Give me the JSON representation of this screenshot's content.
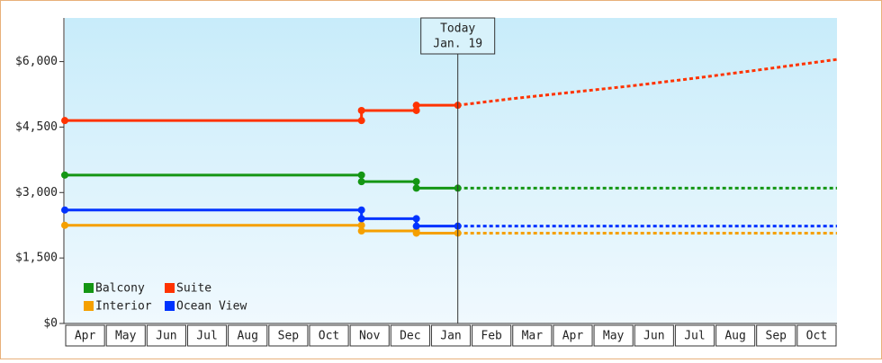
{
  "chart_data": {
    "type": "line",
    "categories": [
      "Apr",
      "May",
      "Jun",
      "Jul",
      "Aug",
      "Sep",
      "Oct",
      "Nov",
      "Dec",
      "Jan",
      "Feb",
      "Mar",
      "Apr",
      "May",
      "Jun",
      "Jul",
      "Aug",
      "Sep",
      "Oct"
    ],
    "xlim": [
      0,
      19
    ],
    "ylim": [
      0,
      7000
    ],
    "yticks": [
      {
        "value": 0,
        "label": "$0"
      },
      {
        "value": 1500,
        "label": "$1,500"
      },
      {
        "value": 3000,
        "label": "$3,000"
      },
      {
        "value": 4500,
        "label": "$4,500"
      },
      {
        "value": 6000,
        "label": "$6,000"
      }
    ],
    "annotation": {
      "x": 9.67,
      "lines": [
        "Today",
        "Jan. 19"
      ]
    },
    "series": [
      {
        "name": "Balcony",
        "color": "#149614",
        "x": [
          0,
          7.3,
          7.3,
          8.65,
          8.65,
          9.67
        ],
        "values": [
          3400,
          3400,
          3250,
          3250,
          3100,
          3100
        ],
        "forecast_x": [
          9.67,
          19
        ],
        "forecast_values": [
          3100,
          3100
        ]
      },
      {
        "name": "Suite",
        "color": "#ff3300",
        "x": [
          0,
          7.3,
          7.3,
          8.65,
          8.65,
          9.67
        ],
        "values": [
          4650,
          4650,
          4880,
          4880,
          5000,
          5000
        ],
        "forecast_x": [
          9.67,
          11,
          12.5,
          14,
          15.5,
          17,
          19
        ],
        "forecast_values": [
          5000,
          5150,
          5300,
          5450,
          5620,
          5800,
          6050
        ]
      },
      {
        "name": "Interior",
        "color": "#f5a000",
        "x": [
          0,
          7.3,
          7.3,
          8.65,
          8.65,
          9.67
        ],
        "values": [
          2250,
          2250,
          2120,
          2120,
          2070,
          2070
        ],
        "forecast_x": [
          9.67,
          19
        ],
        "forecast_values": [
          2070,
          2070
        ]
      },
      {
        "name": "Ocean View",
        "color": "#0033ff",
        "x": [
          0,
          7.3,
          7.3,
          8.65,
          8.65,
          9.67
        ],
        "values": [
          2600,
          2600,
          2400,
          2400,
          2230,
          2230
        ],
        "forecast_x": [
          9.67,
          19
        ],
        "forecast_values": [
          2230,
          2230
        ]
      }
    ]
  }
}
